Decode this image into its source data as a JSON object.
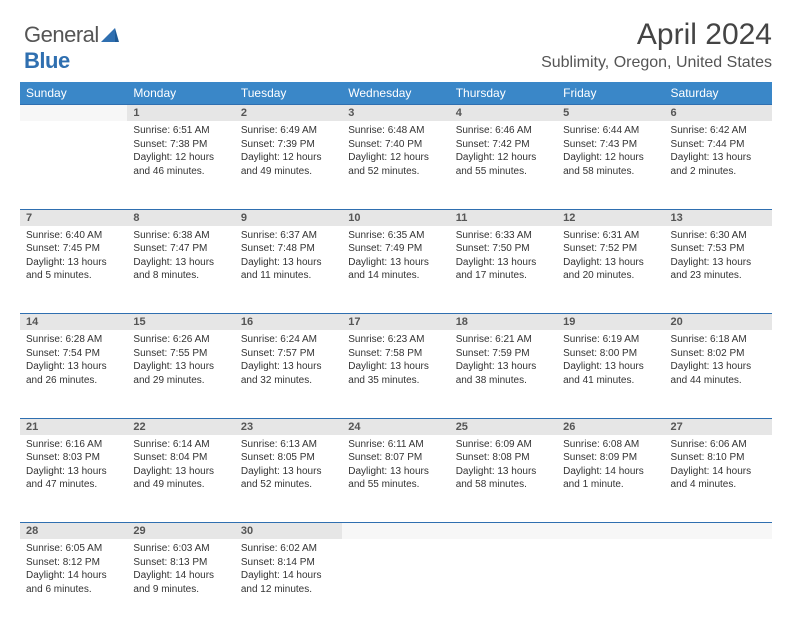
{
  "logo": {
    "text1": "General",
    "text2": "Blue"
  },
  "title": "April 2024",
  "location": "Sublimity, Oregon, United States",
  "colors": {
    "header_bg": "#3a87c8",
    "header_text": "#ffffff",
    "daynum_bg": "#e6e6e6",
    "daynum_border": "#2f6fb0",
    "body_text": "#333333",
    "logo_gray": "#555555",
    "logo_blue": "#2f6fb0"
  },
  "weekdays": [
    "Sunday",
    "Monday",
    "Tuesday",
    "Wednesday",
    "Thursday",
    "Friday",
    "Saturday"
  ],
  "weeks": [
    [
      null,
      {
        "d": "1",
        "sr": "Sunrise: 6:51 AM",
        "ss": "Sunset: 7:38 PM",
        "dl": "Daylight: 12 hours and 46 minutes."
      },
      {
        "d": "2",
        "sr": "Sunrise: 6:49 AM",
        "ss": "Sunset: 7:39 PM",
        "dl": "Daylight: 12 hours and 49 minutes."
      },
      {
        "d": "3",
        "sr": "Sunrise: 6:48 AM",
        "ss": "Sunset: 7:40 PM",
        "dl": "Daylight: 12 hours and 52 minutes."
      },
      {
        "d": "4",
        "sr": "Sunrise: 6:46 AM",
        "ss": "Sunset: 7:42 PM",
        "dl": "Daylight: 12 hours and 55 minutes."
      },
      {
        "d": "5",
        "sr": "Sunrise: 6:44 AM",
        "ss": "Sunset: 7:43 PM",
        "dl": "Daylight: 12 hours and 58 minutes."
      },
      {
        "d": "6",
        "sr": "Sunrise: 6:42 AM",
        "ss": "Sunset: 7:44 PM",
        "dl": "Daylight: 13 hours and 2 minutes."
      }
    ],
    [
      {
        "d": "7",
        "sr": "Sunrise: 6:40 AM",
        "ss": "Sunset: 7:45 PM",
        "dl": "Daylight: 13 hours and 5 minutes."
      },
      {
        "d": "8",
        "sr": "Sunrise: 6:38 AM",
        "ss": "Sunset: 7:47 PM",
        "dl": "Daylight: 13 hours and 8 minutes."
      },
      {
        "d": "9",
        "sr": "Sunrise: 6:37 AM",
        "ss": "Sunset: 7:48 PM",
        "dl": "Daylight: 13 hours and 11 minutes."
      },
      {
        "d": "10",
        "sr": "Sunrise: 6:35 AM",
        "ss": "Sunset: 7:49 PM",
        "dl": "Daylight: 13 hours and 14 minutes."
      },
      {
        "d": "11",
        "sr": "Sunrise: 6:33 AM",
        "ss": "Sunset: 7:50 PM",
        "dl": "Daylight: 13 hours and 17 minutes."
      },
      {
        "d": "12",
        "sr": "Sunrise: 6:31 AM",
        "ss": "Sunset: 7:52 PM",
        "dl": "Daylight: 13 hours and 20 minutes."
      },
      {
        "d": "13",
        "sr": "Sunrise: 6:30 AM",
        "ss": "Sunset: 7:53 PM",
        "dl": "Daylight: 13 hours and 23 minutes."
      }
    ],
    [
      {
        "d": "14",
        "sr": "Sunrise: 6:28 AM",
        "ss": "Sunset: 7:54 PM",
        "dl": "Daylight: 13 hours and 26 minutes."
      },
      {
        "d": "15",
        "sr": "Sunrise: 6:26 AM",
        "ss": "Sunset: 7:55 PM",
        "dl": "Daylight: 13 hours and 29 minutes."
      },
      {
        "d": "16",
        "sr": "Sunrise: 6:24 AM",
        "ss": "Sunset: 7:57 PM",
        "dl": "Daylight: 13 hours and 32 minutes."
      },
      {
        "d": "17",
        "sr": "Sunrise: 6:23 AM",
        "ss": "Sunset: 7:58 PM",
        "dl": "Daylight: 13 hours and 35 minutes."
      },
      {
        "d": "18",
        "sr": "Sunrise: 6:21 AM",
        "ss": "Sunset: 7:59 PM",
        "dl": "Daylight: 13 hours and 38 minutes."
      },
      {
        "d": "19",
        "sr": "Sunrise: 6:19 AM",
        "ss": "Sunset: 8:00 PM",
        "dl": "Daylight: 13 hours and 41 minutes."
      },
      {
        "d": "20",
        "sr": "Sunrise: 6:18 AM",
        "ss": "Sunset: 8:02 PM",
        "dl": "Daylight: 13 hours and 44 minutes."
      }
    ],
    [
      {
        "d": "21",
        "sr": "Sunrise: 6:16 AM",
        "ss": "Sunset: 8:03 PM",
        "dl": "Daylight: 13 hours and 47 minutes."
      },
      {
        "d": "22",
        "sr": "Sunrise: 6:14 AM",
        "ss": "Sunset: 8:04 PM",
        "dl": "Daylight: 13 hours and 49 minutes."
      },
      {
        "d": "23",
        "sr": "Sunrise: 6:13 AM",
        "ss": "Sunset: 8:05 PM",
        "dl": "Daylight: 13 hours and 52 minutes."
      },
      {
        "d": "24",
        "sr": "Sunrise: 6:11 AM",
        "ss": "Sunset: 8:07 PM",
        "dl": "Daylight: 13 hours and 55 minutes."
      },
      {
        "d": "25",
        "sr": "Sunrise: 6:09 AM",
        "ss": "Sunset: 8:08 PM",
        "dl": "Daylight: 13 hours and 58 minutes."
      },
      {
        "d": "26",
        "sr": "Sunrise: 6:08 AM",
        "ss": "Sunset: 8:09 PM",
        "dl": "Daylight: 14 hours and 1 minute."
      },
      {
        "d": "27",
        "sr": "Sunrise: 6:06 AM",
        "ss": "Sunset: 8:10 PM",
        "dl": "Daylight: 14 hours and 4 minutes."
      }
    ],
    [
      {
        "d": "28",
        "sr": "Sunrise: 6:05 AM",
        "ss": "Sunset: 8:12 PM",
        "dl": "Daylight: 14 hours and 6 minutes."
      },
      {
        "d": "29",
        "sr": "Sunrise: 6:03 AM",
        "ss": "Sunset: 8:13 PM",
        "dl": "Daylight: 14 hours and 9 minutes."
      },
      {
        "d": "30",
        "sr": "Sunrise: 6:02 AM",
        "ss": "Sunset: 8:14 PM",
        "dl": "Daylight: 14 hours and 12 minutes."
      },
      null,
      null,
      null,
      null
    ]
  ]
}
